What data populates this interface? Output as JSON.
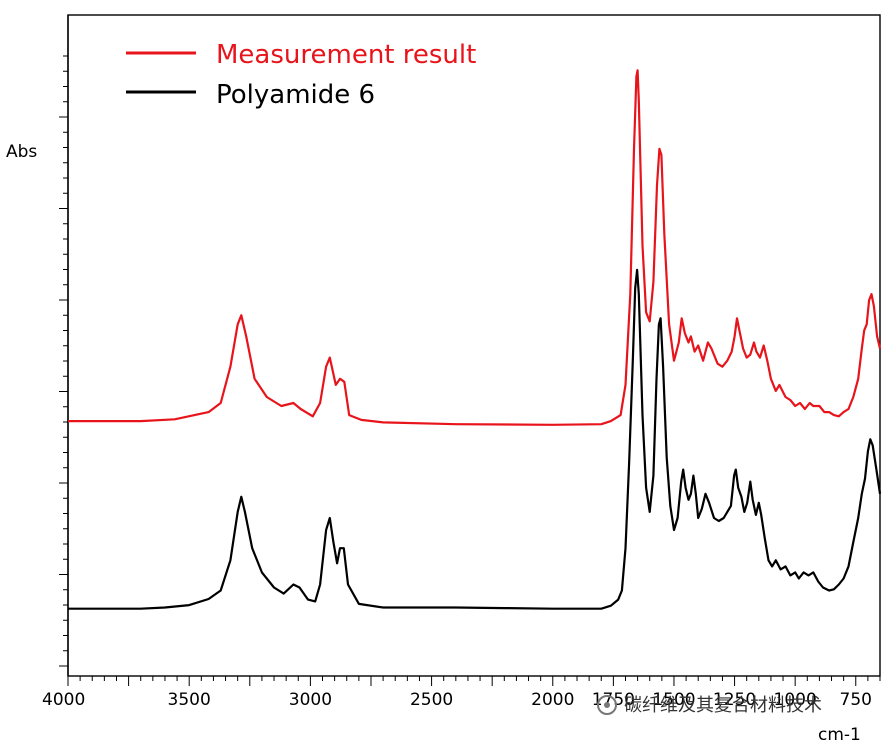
{
  "chart_data": {
    "type": "line",
    "ylabel": "Abs",
    "xlabel": "cm-1",
    "x_axis_reversed": true,
    "xlim": [
      4000,
      650
    ],
    "x_ticks": [
      4000,
      3500,
      3000,
      2500,
      2000,
      1750,
      1500,
      1250,
      1000,
      750
    ],
    "y_axis_scale": "arbitrary (no y tick labels printed)",
    "ylim": [
      0,
      1
    ],
    "grid": false,
    "legend_position": "top-left",
    "series": [
      {
        "name": "Measurement result",
        "color": "#e8141b",
        "points": [
          [
            4000,
            0.37
          ],
          [
            3700,
            0.37
          ],
          [
            3560,
            0.373
          ],
          [
            3420,
            0.385
          ],
          [
            3370,
            0.4
          ],
          [
            3330,
            0.46
          ],
          [
            3300,
            0.53
          ],
          [
            3285,
            0.545
          ],
          [
            3265,
            0.51
          ],
          [
            3230,
            0.44
          ],
          [
            3180,
            0.41
          ],
          [
            3120,
            0.395
          ],
          [
            3070,
            0.4
          ],
          [
            3040,
            0.39
          ],
          [
            2990,
            0.378
          ],
          [
            2960,
            0.4
          ],
          [
            2935,
            0.46
          ],
          [
            2920,
            0.475
          ],
          [
            2895,
            0.43
          ],
          [
            2878,
            0.44
          ],
          [
            2860,
            0.435
          ],
          [
            2840,
            0.38
          ],
          [
            2790,
            0.372
          ],
          [
            2700,
            0.368
          ],
          [
            2400,
            0.365
          ],
          [
            2000,
            0.364
          ],
          [
            1800,
            0.365
          ],
          [
            1760,
            0.37
          ],
          [
            1720,
            0.38
          ],
          [
            1700,
            0.43
          ],
          [
            1680,
            0.58
          ],
          [
            1665,
            0.82
          ],
          [
            1655,
            0.94
          ],
          [
            1650,
            0.95
          ],
          [
            1645,
            0.9
          ],
          [
            1630,
            0.66
          ],
          [
            1615,
            0.55
          ],
          [
            1600,
            0.535
          ],
          [
            1585,
            0.6
          ],
          [
            1570,
            0.76
          ],
          [
            1560,
            0.82
          ],
          [
            1552,
            0.81
          ],
          [
            1540,
            0.68
          ],
          [
            1520,
            0.53
          ],
          [
            1500,
            0.47
          ],
          [
            1480,
            0.5
          ],
          [
            1468,
            0.54
          ],
          [
            1455,
            0.515
          ],
          [
            1440,
            0.5
          ],
          [
            1430,
            0.51
          ],
          [
            1415,
            0.485
          ],
          [
            1400,
            0.495
          ],
          [
            1380,
            0.47
          ],
          [
            1360,
            0.5
          ],
          [
            1345,
            0.49
          ],
          [
            1320,
            0.465
          ],
          [
            1300,
            0.46
          ],
          [
            1280,
            0.47
          ],
          [
            1262,
            0.485
          ],
          [
            1250,
            0.51
          ],
          [
            1240,
            0.54
          ],
          [
            1230,
            0.52
          ],
          [
            1215,
            0.49
          ],
          [
            1200,
            0.475
          ],
          [
            1185,
            0.48
          ],
          [
            1170,
            0.5
          ],
          [
            1160,
            0.485
          ],
          [
            1145,
            0.475
          ],
          [
            1130,
            0.495
          ],
          [
            1115,
            0.47
          ],
          [
            1100,
            0.44
          ],
          [
            1080,
            0.42
          ],
          [
            1065,
            0.43
          ],
          [
            1040,
            0.41
          ],
          [
            1020,
            0.405
          ],
          [
            1000,
            0.395
          ],
          [
            980,
            0.4
          ],
          [
            960,
            0.39
          ],
          [
            940,
            0.4
          ],
          [
            925,
            0.395
          ],
          [
            900,
            0.395
          ],
          [
            880,
            0.385
          ],
          [
            860,
            0.385
          ],
          [
            840,
            0.38
          ],
          [
            820,
            0.378
          ],
          [
            800,
            0.385
          ],
          [
            780,
            0.39
          ],
          [
            760,
            0.41
          ],
          [
            740,
            0.44
          ],
          [
            725,
            0.49
          ],
          [
            715,
            0.52
          ],
          [
            705,
            0.53
          ],
          [
            695,
            0.57
          ],
          [
            685,
            0.58
          ],
          [
            675,
            0.56
          ],
          [
            662,
            0.51
          ],
          [
            650,
            0.49
          ]
        ]
      },
      {
        "name": "Polyamide 6",
        "color": "#000000",
        "points": [
          [
            4000,
            0.06
          ],
          [
            3700,
            0.06
          ],
          [
            3600,
            0.062
          ],
          [
            3500,
            0.066
          ],
          [
            3420,
            0.076
          ],
          [
            3370,
            0.09
          ],
          [
            3330,
            0.14
          ],
          [
            3300,
            0.22
          ],
          [
            3285,
            0.245
          ],
          [
            3270,
            0.22
          ],
          [
            3240,
            0.16
          ],
          [
            3200,
            0.12
          ],
          [
            3150,
            0.095
          ],
          [
            3110,
            0.085
          ],
          [
            3070,
            0.1
          ],
          [
            3045,
            0.095
          ],
          [
            3010,
            0.075
          ],
          [
            2980,
            0.072
          ],
          [
            2960,
            0.1
          ],
          [
            2935,
            0.19
          ],
          [
            2920,
            0.21
          ],
          [
            2905,
            0.17
          ],
          [
            2890,
            0.135
          ],
          [
            2878,
            0.16
          ],
          [
            2862,
            0.16
          ],
          [
            2845,
            0.1
          ],
          [
            2800,
            0.068
          ],
          [
            2700,
            0.062
          ],
          [
            2400,
            0.062
          ],
          [
            2200,
            0.061
          ],
          [
            2000,
            0.06
          ],
          [
            1800,
            0.06
          ],
          [
            1760,
            0.065
          ],
          [
            1730,
            0.075
          ],
          [
            1715,
            0.09
          ],
          [
            1700,
            0.16
          ],
          [
            1685,
            0.3
          ],
          [
            1670,
            0.47
          ],
          [
            1660,
            0.59
          ],
          [
            1652,
            0.62
          ],
          [
            1645,
            0.58
          ],
          [
            1630,
            0.38
          ],
          [
            1615,
            0.26
          ],
          [
            1600,
            0.22
          ],
          [
            1585,
            0.28
          ],
          [
            1572,
            0.44
          ],
          [
            1562,
            0.53
          ],
          [
            1555,
            0.54
          ],
          [
            1545,
            0.46
          ],
          [
            1530,
            0.31
          ],
          [
            1515,
            0.23
          ],
          [
            1500,
            0.19
          ],
          [
            1485,
            0.21
          ],
          [
            1470,
            0.27
          ],
          [
            1462,
            0.29
          ],
          [
            1452,
            0.26
          ],
          [
            1440,
            0.24
          ],
          [
            1430,
            0.25
          ],
          [
            1420,
            0.28
          ],
          [
            1410,
            0.25
          ],
          [
            1400,
            0.21
          ],
          [
            1385,
            0.225
          ],
          [
            1370,
            0.25
          ],
          [
            1355,
            0.235
          ],
          [
            1335,
            0.21
          ],
          [
            1315,
            0.205
          ],
          [
            1295,
            0.21
          ],
          [
            1280,
            0.22
          ],
          [
            1265,
            0.23
          ],
          [
            1252,
            0.28
          ],
          [
            1245,
            0.29
          ],
          [
            1235,
            0.26
          ],
          [
            1222,
            0.245
          ],
          [
            1210,
            0.22
          ],
          [
            1198,
            0.235
          ],
          [
            1185,
            0.27
          ],
          [
            1175,
            0.24
          ],
          [
            1162,
            0.215
          ],
          [
            1150,
            0.235
          ],
          [
            1140,
            0.215
          ],
          [
            1125,
            0.175
          ],
          [
            1110,
            0.14
          ],
          [
            1095,
            0.13
          ],
          [
            1080,
            0.14
          ],
          [
            1060,
            0.125
          ],
          [
            1040,
            0.13
          ],
          [
            1020,
            0.115
          ],
          [
            1000,
            0.12
          ],
          [
            985,
            0.11
          ],
          [
            965,
            0.12
          ],
          [
            945,
            0.115
          ],
          [
            925,
            0.12
          ],
          [
            905,
            0.105
          ],
          [
            885,
            0.095
          ],
          [
            860,
            0.09
          ],
          [
            840,
            0.092
          ],
          [
            820,
            0.1
          ],
          [
            800,
            0.11
          ],
          [
            780,
            0.13
          ],
          [
            760,
            0.17
          ],
          [
            740,
            0.21
          ],
          [
            725,
            0.25
          ],
          [
            712,
            0.275
          ],
          [
            700,
            0.32
          ],
          [
            690,
            0.34
          ],
          [
            680,
            0.33
          ],
          [
            665,
            0.29
          ],
          [
            650,
            0.25
          ]
        ]
      }
    ]
  },
  "watermark": {
    "icon": "wechat-channel-icon",
    "text": "碳纤维及其复合材料技术"
  }
}
